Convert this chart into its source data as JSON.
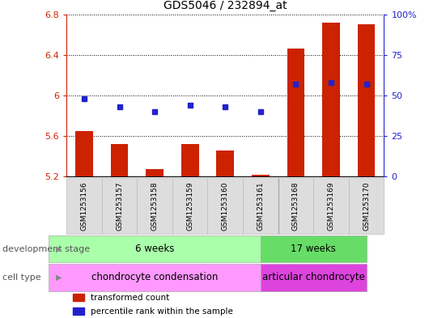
{
  "title": "GDS5046 / 232894_at",
  "samples": [
    "GSM1253156",
    "GSM1253157",
    "GSM1253158",
    "GSM1253159",
    "GSM1253160",
    "GSM1253161",
    "GSM1253168",
    "GSM1253169",
    "GSM1253170"
  ],
  "transformed_count": [
    5.65,
    5.52,
    5.27,
    5.52,
    5.46,
    5.22,
    6.46,
    6.72,
    6.7
  ],
  "percentile_rank": [
    48,
    43,
    40,
    44,
    43,
    40,
    57,
    58,
    57
  ],
  "ylim_left": [
    5.2,
    6.8
  ],
  "ylim_right": [
    0,
    100
  ],
  "yticks_left": [
    5.2,
    5.6,
    6.0,
    6.4,
    6.8
  ],
  "ytick_labels_left": [
    "5.2",
    "5.6",
    "6",
    "6.4",
    "6.8"
  ],
  "yticks_right": [
    0,
    25,
    50,
    75,
    100
  ],
  "ytick_labels_right": [
    "0",
    "25",
    "50",
    "75",
    "100%"
  ],
  "bar_color": "#cc2200",
  "dot_color": "#2222cc",
  "grid_color": "#000000",
  "stage_groups": [
    {
      "label": "6 weeks",
      "start": 0,
      "end": 6,
      "color": "#aaffaa"
    },
    {
      "label": "17 weeks",
      "start": 6,
      "end": 9,
      "color": "#66dd66"
    }
  ],
  "cell_groups": [
    {
      "label": "chondrocyte condensation",
      "start": 0,
      "end": 6,
      "color": "#ff99ff"
    },
    {
      "label": "articular chondrocyte",
      "start": 6,
      "end": 9,
      "color": "#dd44dd"
    }
  ],
  "row_labels": [
    "development stage",
    "cell type"
  ],
  "legend_items": [
    {
      "color": "#cc2200",
      "label": "transformed count"
    },
    {
      "color": "#2222cc",
      "label": "percentile rank within the sample"
    }
  ],
  "bar_width": 0.5,
  "sample_divider": 6,
  "n_groups_first": 6,
  "n_groups_second": 3
}
